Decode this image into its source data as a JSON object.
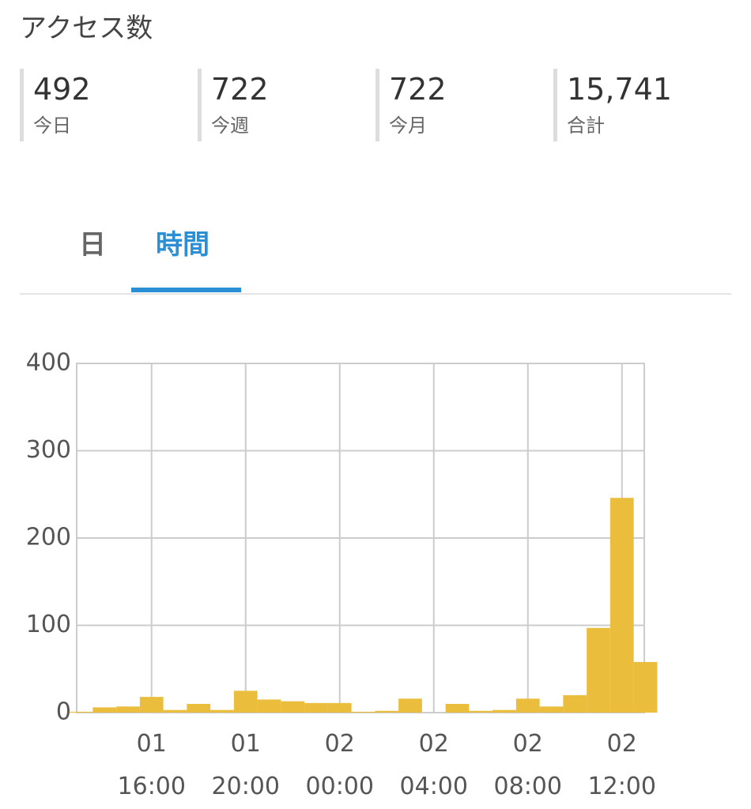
{
  "header": {
    "title": "アクセス数"
  },
  "stats": [
    {
      "value": "492",
      "label": "今日"
    },
    {
      "value": "722",
      "label": "今週"
    },
    {
      "value": "722",
      "label": "今月"
    },
    {
      "value": "15,741",
      "label": "合計"
    }
  ],
  "tabs": [
    {
      "label": "日",
      "active": false
    },
    {
      "label": "時間",
      "active": true
    }
  ],
  "chart_data": {
    "type": "bar",
    "categories": [
      null,
      null,
      null,
      "01 16:00",
      null,
      null,
      null,
      "01 20:00",
      null,
      null,
      null,
      "02 00:00",
      null,
      null,
      null,
      "02 04:00",
      null,
      null,
      null,
      "02 08:00",
      null,
      null,
      null,
      "02 12:00",
      null
    ],
    "values": [
      1,
      6,
      7,
      18,
      3,
      10,
      3,
      25,
      15,
      13,
      11,
      11,
      1,
      2,
      16,
      0,
      10,
      2,
      3,
      16,
      7,
      20,
      97,
      246,
      58
    ],
    "color": "#ebbd3c",
    "ylim": [
      0,
      400
    ],
    "yticks": [
      0,
      100,
      200,
      300,
      400
    ],
    "grid": true
  }
}
